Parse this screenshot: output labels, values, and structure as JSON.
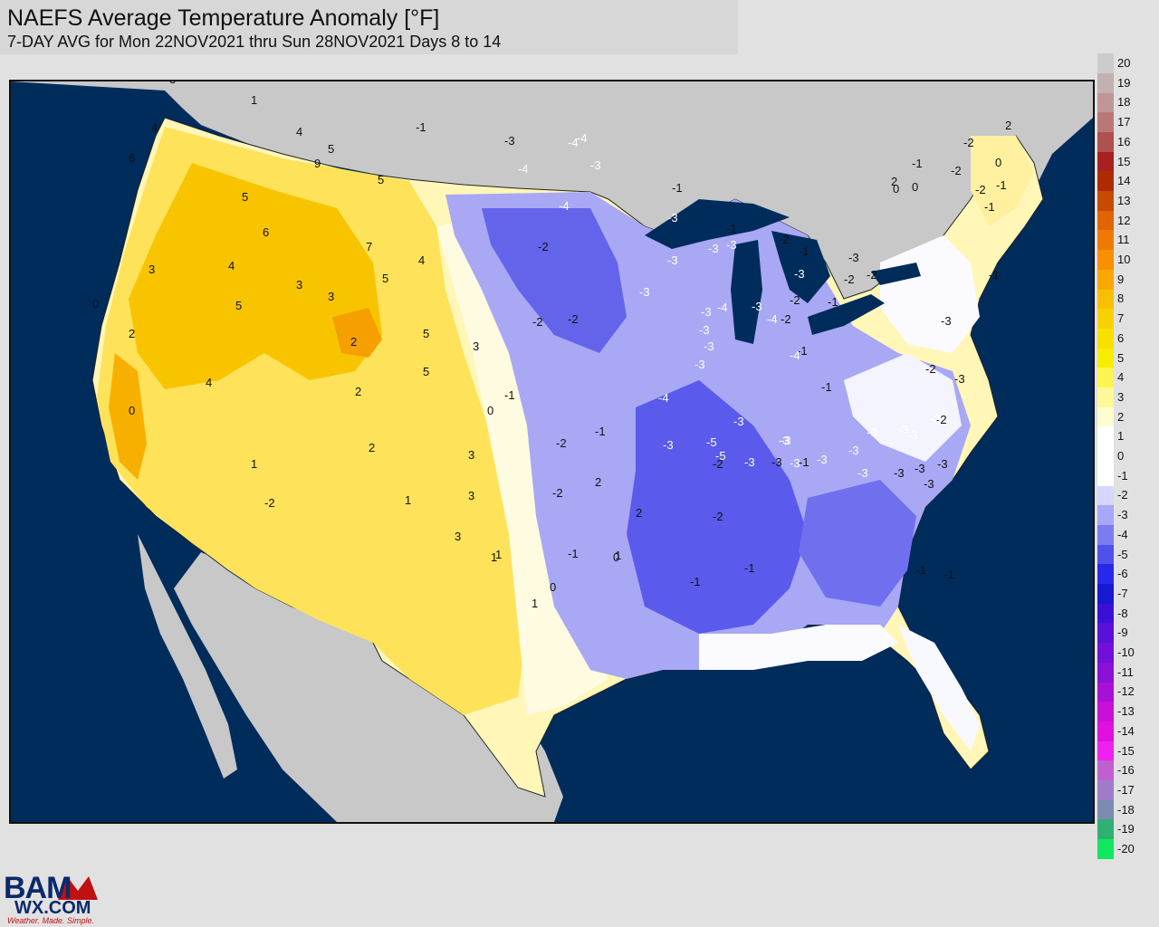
{
  "title": {
    "line1": "NAEFS Average Temperature Anomaly [°F]",
    "line2": "7-DAY AVG for Mon 22NOV2021 thru Sun 28NOV2021 Days 8 to 14"
  },
  "colors": {
    "ocean": "#002c5c",
    "land_outside": "#c8c8c8",
    "near_zero": "#ffffff"
  },
  "color_scale": [
    {
      "label": "20",
      "color": "#cccccc"
    },
    {
      "label": "19",
      "color": "#c4b0b0"
    },
    {
      "label": "18",
      "color": "#c09696"
    },
    {
      "label": "17",
      "color": "#b87878"
    },
    {
      "label": "16",
      "color": "#b05050"
    },
    {
      "label": "15",
      "color": "#a82020"
    },
    {
      "label": "14",
      "color": "#b02a00"
    },
    {
      "label": "13",
      "color": "#c84a00"
    },
    {
      "label": "12",
      "color": "#e06400"
    },
    {
      "label": "11",
      "color": "#f07a00"
    },
    {
      "label": "10",
      "color": "#f89000"
    },
    {
      "label": "9",
      "color": "#f8a800"
    },
    {
      "label": "8",
      "color": "#f8c000"
    },
    {
      "label": "7",
      "color": "#f8d200"
    },
    {
      "label": "6",
      "color": "#f8e000"
    },
    {
      "label": "5",
      "color": "#f8ec00"
    },
    {
      "label": "4",
      "color": "#fcf450"
    },
    {
      "label": "3",
      "color": "#fef89a"
    },
    {
      "label": "2",
      "color": "#fffcd0"
    },
    {
      "label": "1",
      "color": "#ffffff"
    },
    {
      "label": "0",
      "color": "#ffffff"
    },
    {
      "label": "-1",
      "color": "#ffffff"
    },
    {
      "label": "-2",
      "color": "#d6d6ff"
    },
    {
      "label": "-3",
      "color": "#a8a8f8"
    },
    {
      "label": "-4",
      "color": "#7c7cf0"
    },
    {
      "label": "-5",
      "color": "#5050ec"
    },
    {
      "label": "-6",
      "color": "#2828e8"
    },
    {
      "label": "-7",
      "color": "#1818d0"
    },
    {
      "label": "-8",
      "color": "#3a10d8"
    },
    {
      "label": "-9",
      "color": "#5a10d8"
    },
    {
      "label": "-10",
      "color": "#7010d8"
    },
    {
      "label": "-11",
      "color": "#8a10d8"
    },
    {
      "label": "-12",
      "color": "#a810d8"
    },
    {
      "label": "-13",
      "color": "#c810d8"
    },
    {
      "label": "-14",
      "color": "#e010e0"
    },
    {
      "label": "-15",
      "color": "#f020f0"
    },
    {
      "label": "-16",
      "color": "#c060d0"
    },
    {
      "label": "-17",
      "color": "#a07cc8"
    },
    {
      "label": "-18",
      "color": "#7c8cb0"
    },
    {
      "label": "-19",
      "color": "#30b070"
    },
    {
      "label": "-20",
      "color": "#10e860"
    }
  ],
  "map_labels": [
    {
      "text": "4",
      "tone": "dark"
    },
    {
      "text": "6",
      "tone": "dark"
    },
    {
      "text": "3",
      "tone": "dark"
    },
    {
      "text": "2",
      "tone": "dark"
    },
    {
      "text": "1",
      "tone": "dark"
    },
    {
      "text": "4",
      "tone": "dark"
    },
    {
      "text": "5",
      "tone": "dark"
    },
    {
      "text": "9",
      "tone": "dark"
    },
    {
      "text": "5",
      "tone": "dark"
    },
    {
      "text": "5",
      "tone": "dark"
    },
    {
      "text": "3",
      "tone": "dark"
    },
    {
      "text": "6",
      "tone": "dark"
    },
    {
      "text": "7",
      "tone": "dark"
    },
    {
      "text": "5",
      "tone": "dark"
    },
    {
      "text": "4",
      "tone": "dark"
    },
    {
      "text": "4",
      "tone": "dark"
    },
    {
      "text": "3",
      "tone": "dark"
    },
    {
      "text": "5",
      "tone": "dark"
    },
    {
      "text": "3",
      "tone": "dark"
    },
    {
      "text": "0",
      "tone": "dark"
    },
    {
      "text": "2",
      "tone": "dark"
    },
    {
      "text": "3",
      "tone": "dark"
    },
    {
      "text": "2",
      "tone": "dark"
    },
    {
      "text": "5",
      "tone": "dark"
    },
    {
      "text": "5",
      "tone": "dark"
    },
    {
      "text": "4",
      "tone": "dark"
    },
    {
      "text": "2",
      "tone": "dark"
    },
    {
      "text": "0",
      "tone": "dark"
    },
    {
      "text": "3",
      "tone": "dark"
    },
    {
      "text": "1",
      "tone": "dark"
    },
    {
      "text": "2",
      "tone": "dark"
    },
    {
      "text": "-2",
      "tone": "dark"
    },
    {
      "text": "1",
      "tone": "dark"
    },
    {
      "text": "3",
      "tone": "dark"
    },
    {
      "text": "1",
      "tone": "dark"
    },
    {
      "text": "3",
      "tone": "dark"
    },
    {
      "text": "1",
      "tone": "dark"
    },
    {
      "text": "1",
      "tone": "dark"
    },
    {
      "text": "1",
      "tone": "dark"
    },
    {
      "text": "0",
      "tone": "dark"
    },
    {
      "text": "0",
      "tone": "dark"
    },
    {
      "text": "2",
      "tone": "dark"
    },
    {
      "text": "0",
      "tone": "dark"
    },
    {
      "text": "-1",
      "tone": "dark"
    },
    {
      "text": "-1",
      "tone": "dark"
    },
    {
      "text": "-2",
      "tone": "dark"
    },
    {
      "text": "-2",
      "tone": "dark"
    },
    {
      "text": "-2",
      "tone": "dark"
    },
    {
      "text": "-1",
      "tone": "dark"
    },
    {
      "text": "-2",
      "tone": "dark"
    },
    {
      "text": "-2",
      "tone": "dark"
    },
    {
      "text": "-1",
      "tone": "dark"
    },
    {
      "text": "-1",
      "tone": "dark"
    },
    {
      "text": "-3",
      "tone": "dark"
    },
    {
      "text": "-3",
      "tone": "dark"
    },
    {
      "text": "-1",
      "tone": "dark"
    },
    {
      "text": "-2",
      "tone": "dark"
    },
    {
      "text": "-2",
      "tone": "dark"
    },
    {
      "text": "-2",
      "tone": "dark"
    },
    {
      "text": "-2",
      "tone": "dark"
    },
    {
      "text": "-1",
      "tone": "dark"
    },
    {
      "text": "-2",
      "tone": "dark"
    },
    {
      "text": "-1",
      "tone": "dark"
    },
    {
      "text": "-2",
      "tone": "dark"
    },
    {
      "text": "-2",
      "tone": "dark"
    },
    {
      "text": "-2",
      "tone": "dark"
    },
    {
      "text": "-1",
      "tone": "dark"
    },
    {
      "text": "-1",
      "tone": "dark"
    },
    {
      "text": "-1",
      "tone": "dark"
    },
    {
      "text": "-1",
      "tone": "dark"
    },
    {
      "text": "-1",
      "tone": "dark"
    },
    {
      "text": "-1",
      "tone": "dark"
    },
    {
      "text": "0",
      "tone": "dark"
    },
    {
      "text": "0",
      "tone": "dark"
    },
    {
      "text": "0",
      "tone": "dark"
    },
    {
      "text": "0",
      "tone": "dark"
    },
    {
      "text": "2",
      "tone": "dark"
    },
    {
      "text": "2",
      "tone": "dark"
    },
    {
      "text": "2",
      "tone": "dark"
    },
    {
      "text": "-1",
      "tone": "dark"
    },
    {
      "text": "-3",
      "tone": "dark"
    },
    {
      "text": "-2",
      "tone": "dark"
    },
    {
      "text": "-2",
      "tone": "dark"
    },
    {
      "text": "-3",
      "tone": "dark"
    },
    {
      "text": "-3",
      "tone": "dark"
    },
    {
      "text": "-3",
      "tone": "dark"
    },
    {
      "text": "-3",
      "tone": "dark"
    },
    {
      "text": "-3",
      "tone": "dark"
    },
    {
      "text": "-2",
      "tone": "dark"
    },
    {
      "text": "-1",
      "tone": "dark"
    },
    {
      "text": "-1",
      "tone": "dark"
    },
    {
      "text": "-1",
      "tone": "dark"
    },
    {
      "text": "-1",
      "tone": "dark"
    },
    {
      "text": "-2",
      "tone": "dark"
    },
    {
      "text": "-3",
      "tone": "dark"
    },
    {
      "text": "-4",
      "tone": "light"
    },
    {
      "text": "-4",
      "tone": "light"
    },
    {
      "text": "-3",
      "tone": "light"
    },
    {
      "text": "-4",
      "tone": "light"
    },
    {
      "text": "-4",
      "tone": "light"
    },
    {
      "text": "-3",
      "tone": "light"
    },
    {
      "text": "-3",
      "tone": "light"
    },
    {
      "text": "-3",
      "tone": "light"
    },
    {
      "text": "-3",
      "tone": "light"
    },
    {
      "text": "-3",
      "tone": "light"
    },
    {
      "text": "-3",
      "tone": "light"
    },
    {
      "text": "-4",
      "tone": "light"
    },
    {
      "text": "-3",
      "tone": "light"
    },
    {
      "text": "-3",
      "tone": "light"
    },
    {
      "text": "-3",
      "tone": "light"
    },
    {
      "text": "-4",
      "tone": "light"
    },
    {
      "text": "-4",
      "tone": "light"
    },
    {
      "text": "-3",
      "tone": "light"
    },
    {
      "text": "-3",
      "tone": "light"
    },
    {
      "text": "-4",
      "tone": "light"
    },
    {
      "text": "-3",
      "tone": "light"
    },
    {
      "text": "-5",
      "tone": "light"
    },
    {
      "text": "-5",
      "tone": "light"
    },
    {
      "text": "-3",
      "tone": "light"
    },
    {
      "text": "-3",
      "tone": "light"
    },
    {
      "text": "-3",
      "tone": "light"
    },
    {
      "text": "-3",
      "tone": "light"
    },
    {
      "text": "-3",
      "tone": "light"
    },
    {
      "text": "-3",
      "tone": "light"
    },
    {
      "text": "-3",
      "tone": "light"
    },
    {
      "text": "-3",
      "tone": "light"
    },
    {
      "text": "-3",
      "tone": "light"
    },
    {
      "text": "-3",
      "tone": "light"
    },
    {
      "text": "-3",
      "tone": "light"
    },
    {
      "text": "-3",
      "tone": "light"
    },
    {
      "text": "-3",
      "tone": "light"
    }
  ],
  "logo": {
    "line1": "BAM",
    "line2": "WX.COM",
    "tagline": "Weather. Made. Simple."
  }
}
